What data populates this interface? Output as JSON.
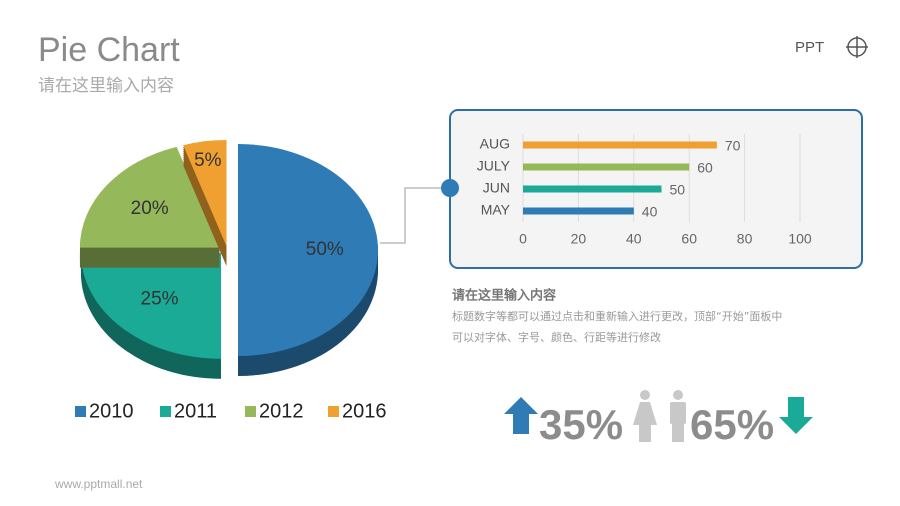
{
  "header": {
    "title": "Pie Chart",
    "subtitle": "请在这里输入内容",
    "logo": "PPT"
  },
  "chart_data": [
    {
      "type": "pie",
      "categories": [
        "2010",
        "2011",
        "2012",
        "2016"
      ],
      "values": [
        50,
        25,
        20,
        5
      ],
      "value_labels": [
        "50%",
        "25%",
        "20%",
        "5%"
      ],
      "colors": [
        "#2e7bb5",
        "#1aaa96",
        "#94b85a",
        "#f0a030"
      ],
      "legend": "bottom"
    },
    {
      "type": "bar",
      "orientation": "horizontal",
      "categories": [
        "AUG",
        "JULY",
        "JUN",
        "MAY"
      ],
      "values": [
        70,
        60,
        50,
        40
      ],
      "colors": [
        "#f0a030",
        "#94b85a",
        "#1aaa96",
        "#2e7bb5"
      ],
      "xlim": [
        0,
        100
      ],
      "xticks": [
        0,
        20,
        40,
        60,
        80,
        100
      ],
      "grid": true
    }
  ],
  "text": {
    "heading": "请在这里输入内容",
    "body": [
      "标题数字等都可以通过点击和重新输入进行更改，顶部“开始”面板中",
      "可以对字体、字号、颜色、行距等进行修改"
    ]
  },
  "stats": [
    "35%",
    "65%"
  ],
  "footer": "www.pptmall.net"
}
